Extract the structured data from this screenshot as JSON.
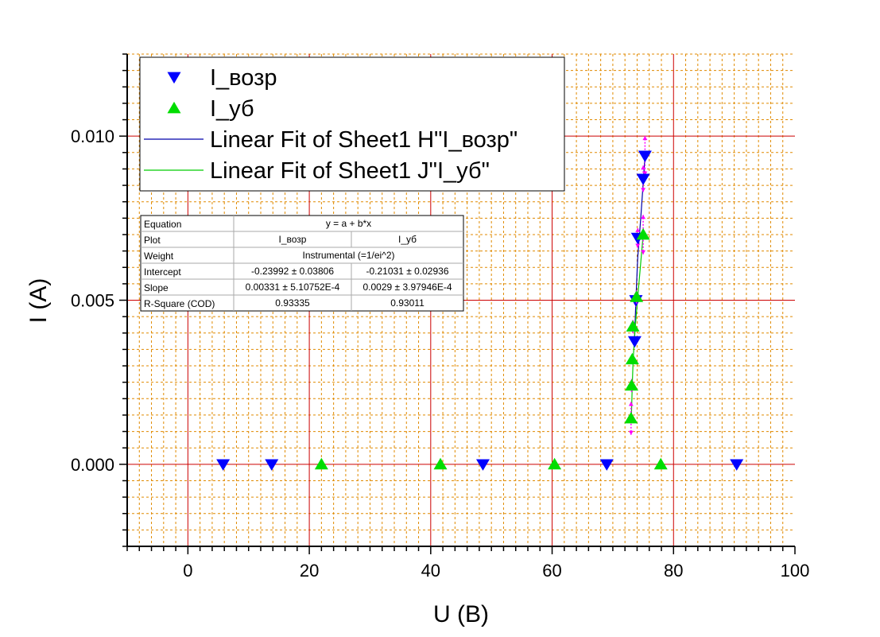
{
  "chart_data": {
    "type": "scatter",
    "xlabel": "U (В)",
    "ylabel": "I (A)",
    "xlim": [
      -10,
      100
    ],
    "ylim": [
      -0.0025,
      0.0125
    ],
    "x_ticks": [
      0,
      20,
      40,
      60,
      80,
      100
    ],
    "y_ticks": [
      0.0,
      0.005,
      0.01
    ],
    "x_tick_labels": [
      "0",
      "20",
      "40",
      "60",
      "80",
      "100"
    ],
    "y_tick_labels": [
      "0.000",
      "0.005",
      "0.010"
    ],
    "grid": {
      "major": true,
      "minor": true,
      "major_color": "#cc0000",
      "minor_color": "#e08a00"
    },
    "legend_position": "top-left",
    "legend": [
      {
        "label": "I_возр",
        "kind": "marker-down",
        "color": "#0000ff"
      },
      {
        "label": "I_уб",
        "kind": "marker-up",
        "color": "#00dd00"
      },
      {
        "label": "Linear Fit of Sheet1 H\"I_возр\"",
        "kind": "line",
        "color": "#0000aa"
      },
      {
        "label": "Linear Fit of Sheet1 J\"I_уб\"",
        "kind": "line",
        "color": "#00cc00"
      }
    ],
    "series": [
      {
        "name": "I_возр",
        "marker": "down-triangle",
        "color": "#0000ff",
        "x": [
          5.8,
          13.8,
          48.6,
          69.0,
          90.4,
          73.6,
          73.8,
          74.1,
          75.0,
          75.3
        ],
        "y": [
          0.0,
          0.0,
          0.0,
          0.0,
          0.0,
          0.00375,
          0.005,
          0.0069,
          0.0087,
          0.0094
        ],
        "error_x": [
          0,
          0,
          0,
          0,
          0,
          0,
          0,
          0,
          0,
          0
        ],
        "error_y": [
          0,
          0,
          0,
          0,
          0,
          0.00015,
          0.0002,
          0.0003,
          0.0004,
          0.0006
        ]
      },
      {
        "name": "I_уб",
        "marker": "up-triangle",
        "color": "#00dd00",
        "x": [
          22.0,
          41.6,
          60.4,
          77.9,
          73.0,
          73.1,
          73.2,
          73.3,
          73.9,
          75.0
        ],
        "y": [
          0.0,
          0.0,
          0.0,
          0.0,
          0.0014,
          0.0024,
          0.0032,
          0.0042,
          0.0051,
          0.007
        ],
        "error_y": [
          0,
          0,
          0,
          0,
          0.0005,
          0.0002,
          0.00015,
          0.0002,
          0.0002,
          0.0006
        ]
      }
    ],
    "fit_lines": [
      {
        "name": "Linear Fit of Sheet1 H\"I_возр\"",
        "color": "#0000aa",
        "x": [
          73.55,
          73.8,
          74.1,
          74.6,
          75.05,
          75.3
        ],
        "y": [
          0.0037,
          0.005,
          0.0063,
          0.0075,
          0.0087,
          0.0094
        ]
      },
      {
        "name": "Linear Fit of Sheet1 J\"I_уб\"",
        "color": "#00cc00",
        "x": [
          73.05,
          73.2,
          73.35,
          73.7,
          74.2,
          75.0
        ],
        "y": [
          0.0014,
          0.0024,
          0.0032,
          0.0042,
          0.0053,
          0.007
        ]
      }
    ],
    "fit_table": {
      "rows": [
        {
          "label": "Equation",
          "span": "y = a + b*x"
        },
        {
          "label": "Plot",
          "c1": "I_возр",
          "c2": "I_уб"
        },
        {
          "label": "Weight",
          "span": "Instrumental (=1/ei^2)"
        },
        {
          "label": "Intercept",
          "c1": "-0.23992 ± 0.03806",
          "c2": "-0.21031 ± 0.02936"
        },
        {
          "label": "Slope",
          "c1": "0.00331 ± 5.10752E-4",
          "c2": "0.0029 ± 3.97946E-4"
        },
        {
          "label": "R-Square (COD)",
          "c1": "0.93335",
          "c2": "0.93011"
        }
      ]
    }
  }
}
